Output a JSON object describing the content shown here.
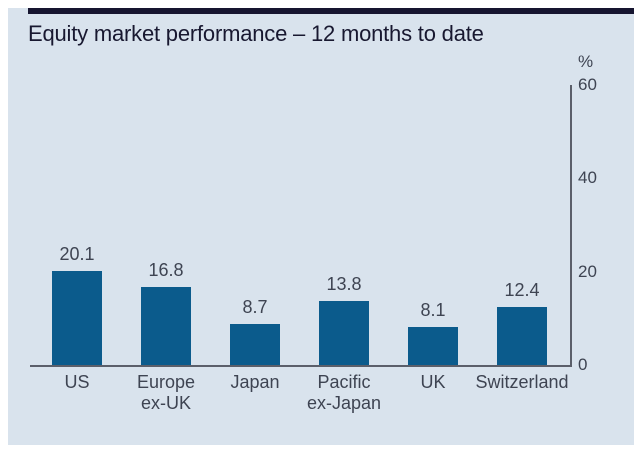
{
  "chart_data": {
    "type": "bar",
    "title": "Equity market performance – 12 months to date",
    "categories": [
      "US",
      "Europe\nex-UK",
      "Japan",
      "Pacific\nex-Japan",
      "UK",
      "Switzerland"
    ],
    "values": [
      20.1,
      16.8,
      8.7,
      13.8,
      8.1,
      12.4
    ],
    "value_labels": [
      "20.1",
      "16.8",
      "8.7",
      "13.8",
      "8.1",
      "12.4"
    ],
    "xlabel": "",
    "ylabel": "%",
    "yticks": [
      0,
      20,
      40,
      60
    ],
    "ylim": [
      0,
      60
    ],
    "grid": false,
    "legend": "none",
    "axis_side": "right",
    "bar_color": "#0b5b8c"
  },
  "colors": {
    "page_bg": "#ffffff",
    "panel_bg": "#d9e3ed",
    "bar": "#0b5b8c",
    "top_rule": "#161530",
    "title_text": "#181830",
    "label_text": "#3e4452",
    "axis_line": "#5b5f6a"
  }
}
